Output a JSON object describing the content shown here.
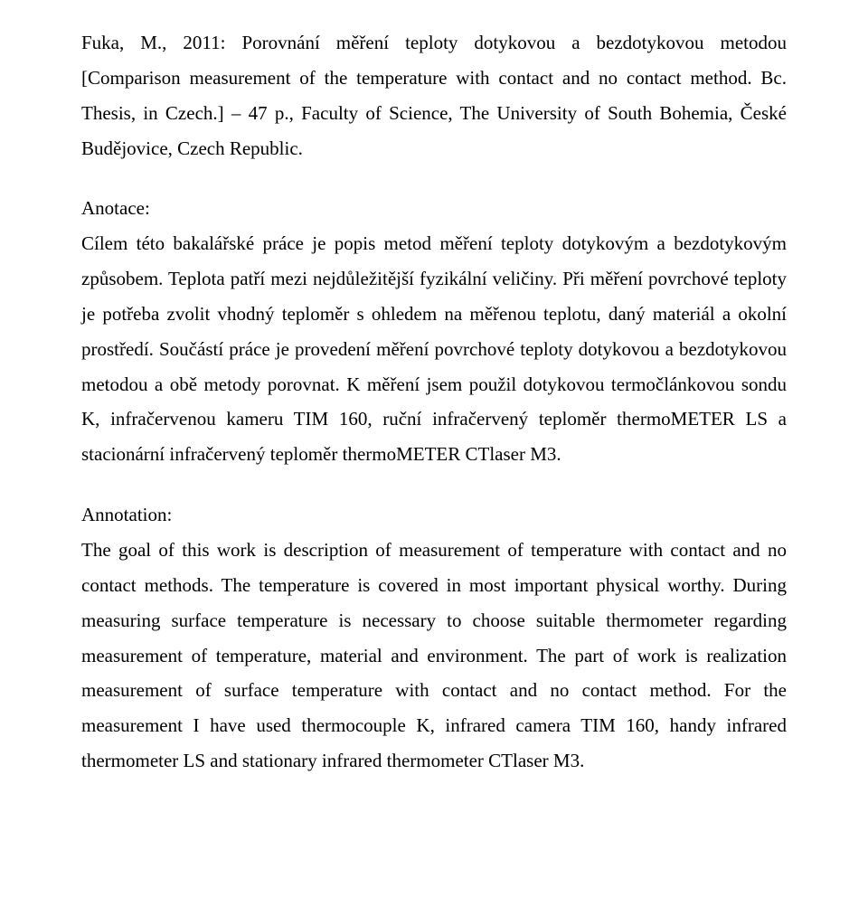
{
  "citation": "Fuka, M., 2011: Porovnání měření teploty dotykovou a bezdotykovou metodou [Comparison measurement of the temperature with contact and no contact method. Bc. Thesis, in Czech.] – 47 p., Faculty of Science, The University of South Bohemia, České Budějovice, Czech Republic.",
  "anotace_label": "Anotace:",
  "anotace_body": "Cílem této bakalářské práce je popis metod měření teploty dotykovým a bezdotykovým způsobem. Teplota patří mezi nejdůležitější fyzikální veličiny. Při měření povrchové teploty je potřeba zvolit vhodný teploměr s ohledem na měřenou teplotu, daný materiál a okolní prostředí. Součástí práce je provedení měření povrchové teploty dotykovou a bezdotykovou metodou a obě metody porovnat. K měření jsem použil dotykovou termočlánkovou sondu K, infračervenou kameru TIM 160, ruční infračervený teploměr thermoMETER LS a stacionární infračervený teploměr thermoMETER CTlaser M3.",
  "annotation_label": "Annotation:",
  "annotation_body": "The goal of this work is description of measurement of temperature with contact and no contact methods. The temperature is covered in most important physical worthy. During measuring surface temperature is necessary to choose suitable thermometer regarding measurement of temperature, material and environment. The part of work is realization measurement of surface temperature with contact and no contact method. For the measurement I have used thermocouple K, infrared camera TIM 160, handy infrared thermometer LS and stationary infrared thermometer CTlaser M3."
}
